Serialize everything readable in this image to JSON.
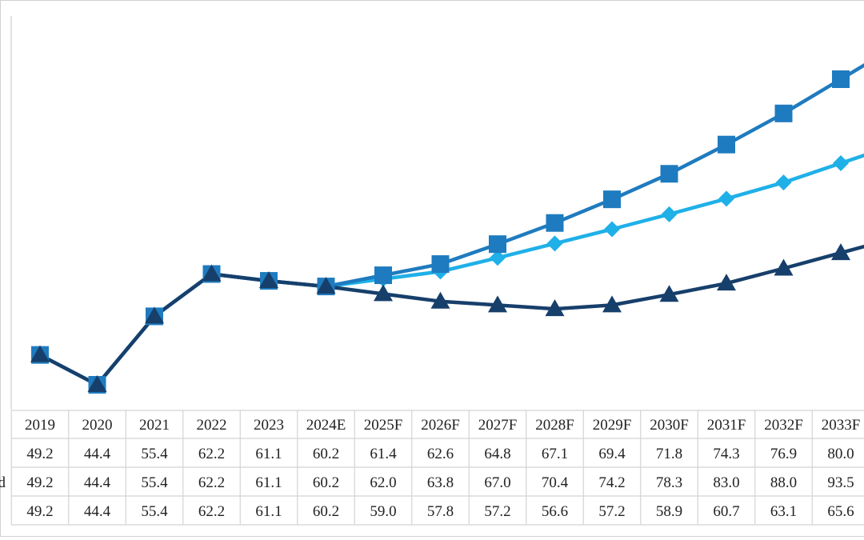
{
  "chart_data": {
    "type": "line",
    "x": [
      "2019",
      "2020",
      "2021",
      "2022",
      "2023",
      "2024E",
      "2025F",
      "2026F",
      "2027F",
      "2028F",
      "2029F",
      "2030F",
      "2031F",
      "2032F",
      "2033F"
    ],
    "series": [
      {
        "row_label": "",
        "marker": "diamond",
        "color": "#1fb0e8",
        "values": [
          49.2,
          44.4,
          55.4,
          62.2,
          61.1,
          60.2,
          61.4,
          62.6,
          64.8,
          67.1,
          69.4,
          71.8,
          74.3,
          76.9,
          80.0
        ]
      },
      {
        "row_label": "d",
        "marker": "square",
        "color": "#1f7bbf",
        "values": [
          49.2,
          44.4,
          55.4,
          62.2,
          61.1,
          60.2,
          62.0,
          63.8,
          67.0,
          70.4,
          74.2,
          78.3,
          83.0,
          88.0,
          93.5
        ]
      },
      {
        "row_label": "",
        "marker": "triangle",
        "color": "#173f6b",
        "values": [
          49.2,
          44.4,
          55.4,
          62.2,
          61.1,
          60.2,
          59.0,
          57.8,
          57.2,
          56.6,
          57.2,
          58.9,
          60.7,
          63.1,
          65.6
        ]
      }
    ],
    "table": {
      "rows": [
        [
          "49.2",
          "44.4",
          "55.4",
          "62.2",
          "61.1",
          "60.2",
          "61.4",
          "62.6",
          "64.8",
          "67.1",
          "69.4",
          "71.8",
          "74.3",
          "76.9",
          "80.0"
        ],
        [
          "49.2",
          "44.4",
          "55.4",
          "62.2",
          "61.1",
          "60.2",
          "62.0",
          "63.8",
          "67.0",
          "70.4",
          "74.2",
          "78.3",
          "83.0",
          "88.0",
          "93.5"
        ],
        [
          "49.2",
          "44.4",
          "55.4",
          "62.2",
          "61.1",
          "60.2",
          "59.0",
          "57.8",
          "57.2",
          "56.6",
          "57.2",
          "58.9",
          "60.7",
          "63.1",
          "65.6"
        ]
      ]
    },
    "grid": false,
    "legend": "none"
  }
}
